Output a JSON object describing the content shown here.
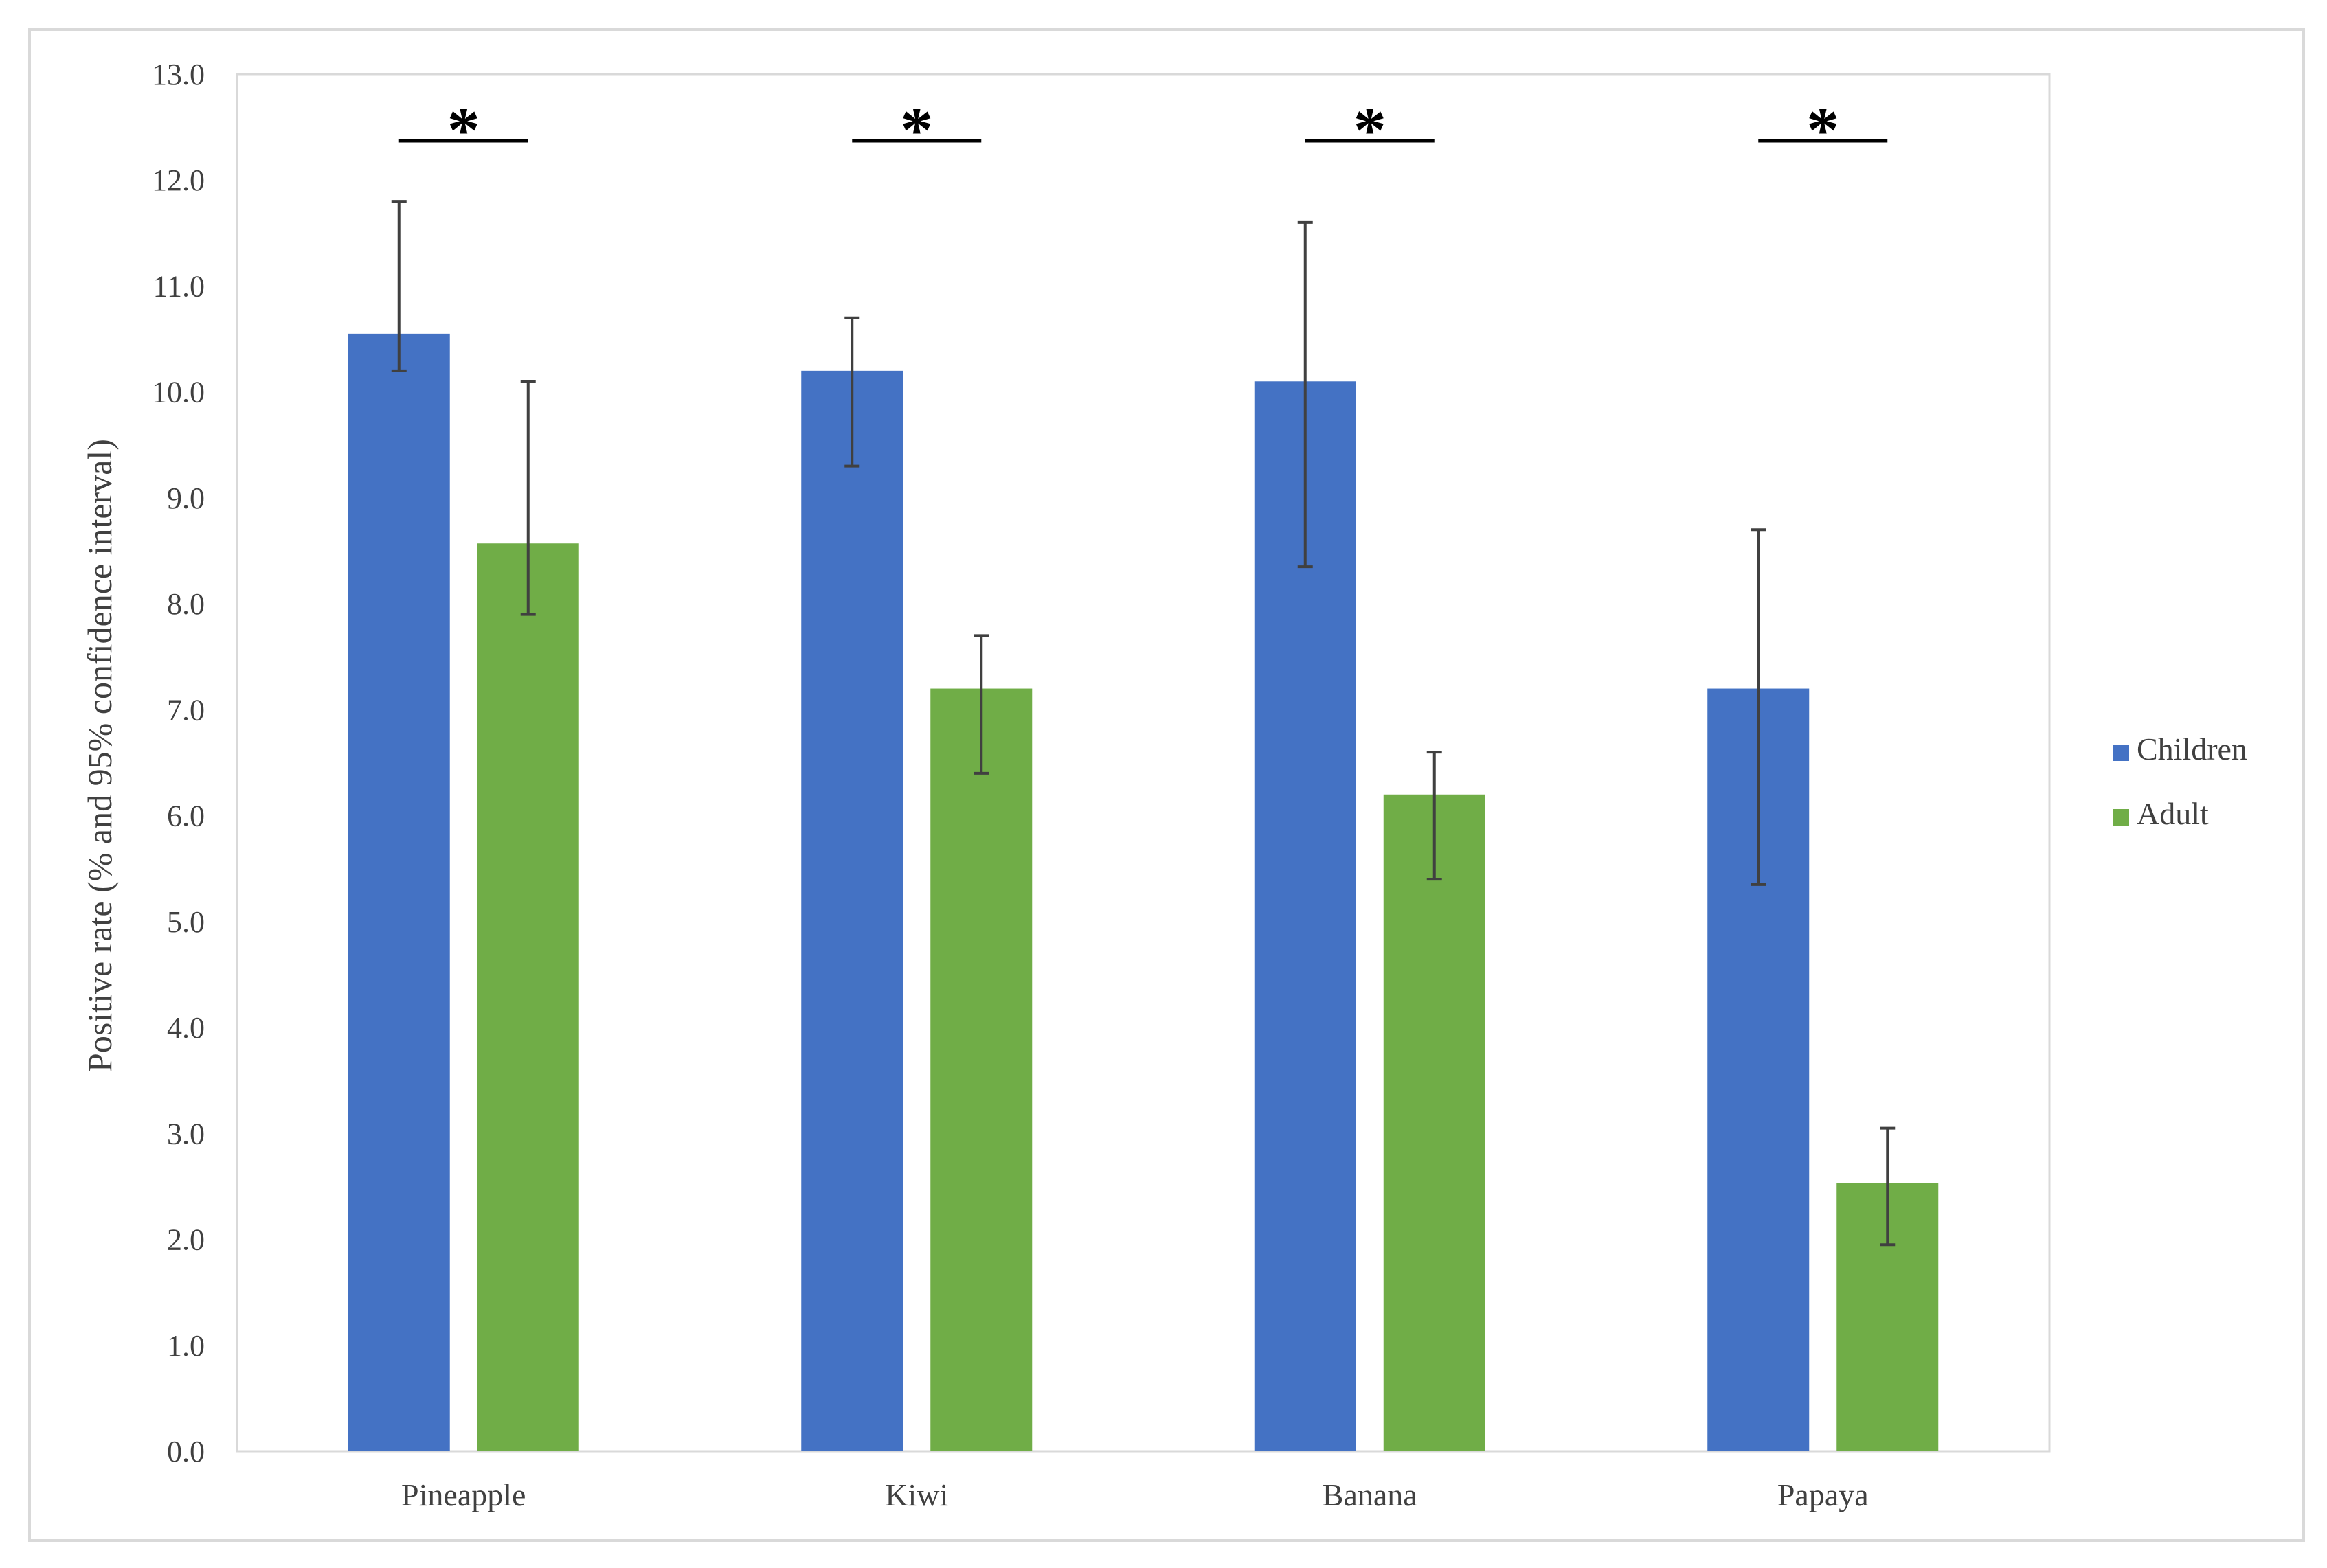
{
  "chart_data": {
    "type": "bar",
    "title": "",
    "xlabel": "",
    "ylabel": "Positive rate  (% and 95% confidence interval)",
    "ylim": [
      0,
      13
    ],
    "yticks": [
      "0.0",
      "1.0",
      "2.0",
      "3.0",
      "4.0",
      "5.0",
      "6.0",
      "7.0",
      "8.0",
      "9.0",
      "10.0",
      "11.0",
      "12.0",
      "13.0"
    ],
    "grid": false,
    "legend_position": "right",
    "categories": [
      "Pineapple",
      "Kiwi",
      "Banana",
      "Papaya"
    ],
    "series": [
      {
        "name": "Children",
        "color": "#4472c4",
        "values": [
          10.55,
          10.2,
          10.1,
          7.2
        ],
        "ci_low": [
          10.2,
          9.3,
          8.35,
          5.35
        ],
        "ci_high": [
          11.8,
          10.7,
          11.6,
          8.7
        ]
      },
      {
        "name": "Adult",
        "color": "#70ad47",
        "values": [
          8.57,
          7.2,
          6.2,
          2.53
        ],
        "ci_low": [
          7.9,
          6.4,
          5.4,
          1.95
        ],
        "ci_high": [
          10.1,
          7.7,
          6.6,
          3.05
        ]
      }
    ],
    "significance": [
      "*",
      "*",
      "*",
      "*"
    ]
  }
}
